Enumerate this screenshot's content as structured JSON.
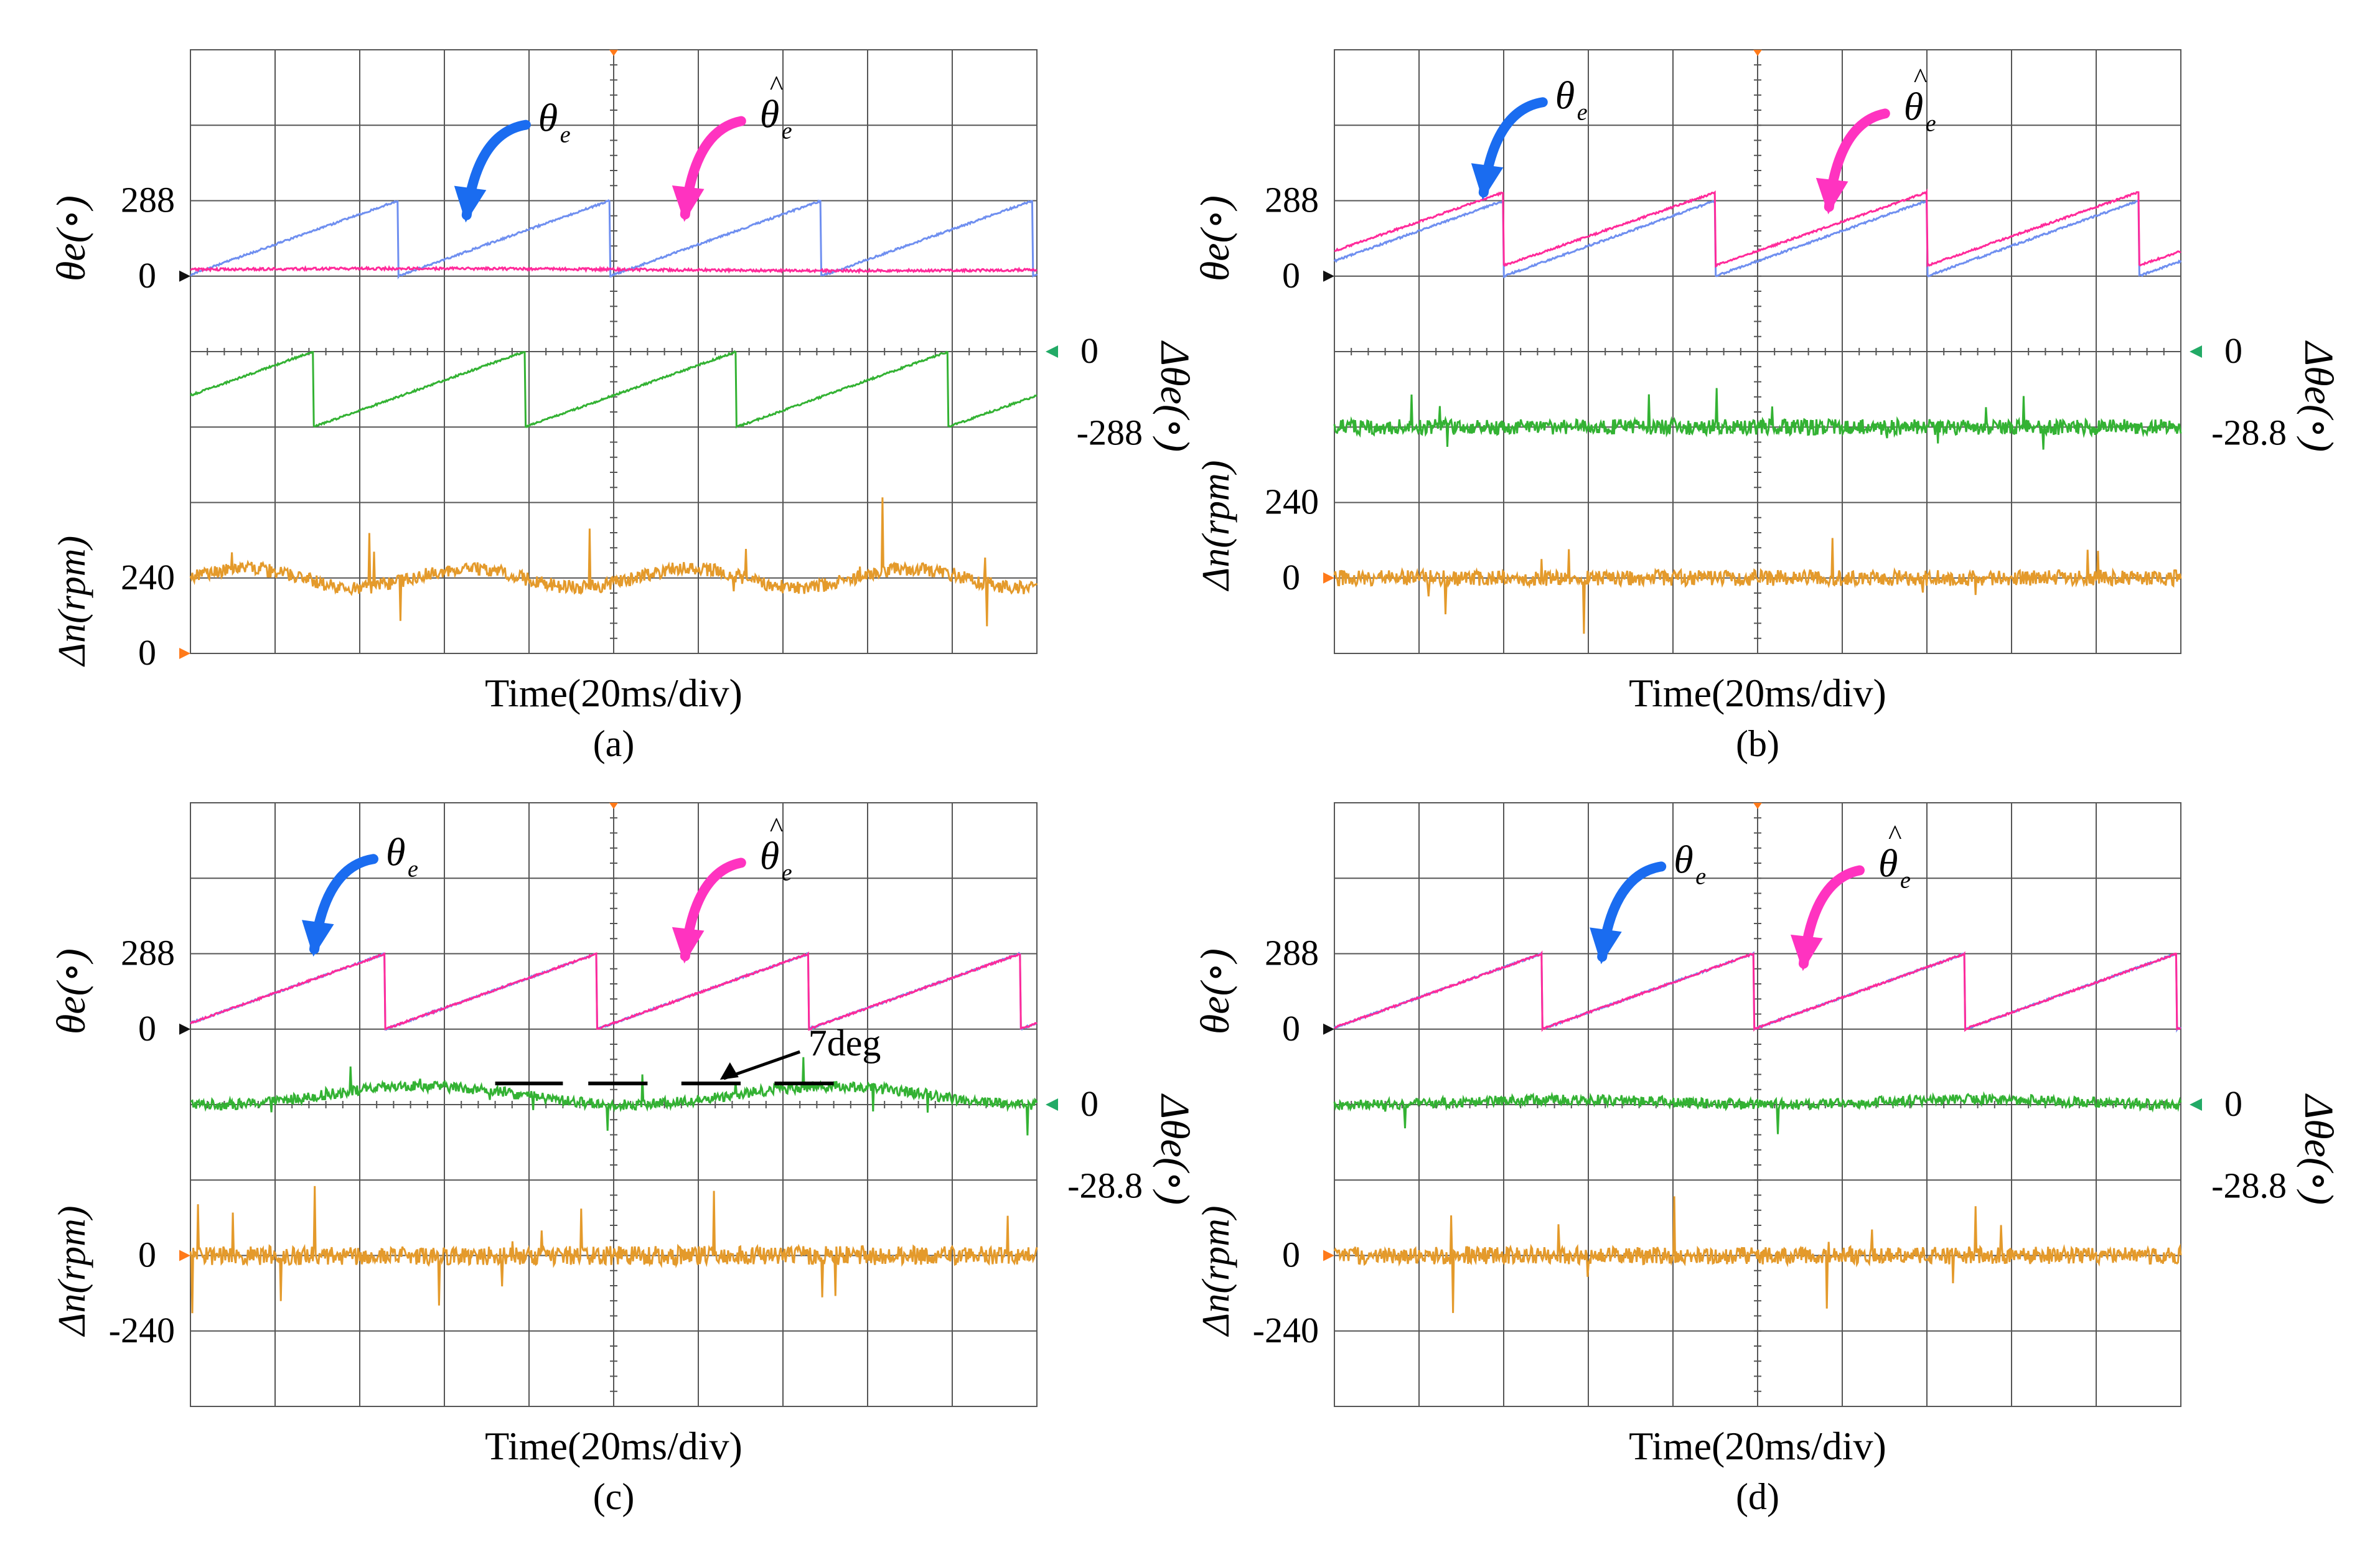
{
  "figure": {
    "colors": {
      "theta": "#6f8ff0",
      "theta_hat": "#ff2a9a",
      "error": "#33b233",
      "speed": "#e49a2b",
      "arrow_theta": "#1a6cf0",
      "arrow_theta_hat": "#ff33c0",
      "marker_green": "#22aa66",
      "marker_orange": "#ff7a1a"
    },
    "x_axis_label": "Time(20ms/div)",
    "symbols": {
      "theta": "θ",
      "theta_sub": "e",
      "hat": "^",
      "delta_theta": "Δθ",
      "delta_n": "Δn",
      "rpm": "rpm",
      "deg": "(∘)"
    }
  },
  "chart_data": [
    {
      "type": "line",
      "panel": "(a)",
      "x_divisions": 10,
      "x_unit": "ms",
      "x_per_div": 20,
      "theta_tick": "288",
      "theta_zero": "0",
      "err_zero": "0",
      "err_tick": "-288",
      "speed_tick": "240",
      "speed_zero": "0",
      "series": [
        {
          "key": "theta",
          "sawtooth_period_div": 2.5,
          "phase_div": 2.45,
          "min": 0,
          "max": 288
        },
        {
          "key": "theta_hat",
          "flat_value": 25
        },
        {
          "key": "error",
          "sawtooth_period_div": 2.5,
          "phase_div": 1.45,
          "min": -288,
          "max": 0
        },
        {
          "key": "speed",
          "mean": 240,
          "ripple": 30,
          "noise": 22
        }
      ]
    },
    {
      "type": "line",
      "panel": "(b)",
      "x_divisions": 10,
      "x_unit": "ms",
      "x_per_div": 20,
      "theta_tick": "288",
      "theta_zero": "0",
      "err_zero": "0",
      "err_tick": "-28.8",
      "speed_tick": "240",
      "speed_zero": "0",
      "series": [
        {
          "key": "theta",
          "sawtooth_period_div": 2.5,
          "phase_div": 2.0,
          "min": 0,
          "max": 288
        },
        {
          "key": "theta_hat",
          "sawtooth_period_div": 2.5,
          "phase_div": 2.0,
          "min": 40,
          "max": 320
        },
        {
          "key": "error",
          "mean": -28.8,
          "noise": 3
        },
        {
          "key": "speed",
          "mean": 0,
          "noise": 25
        }
      ]
    },
    {
      "type": "line",
      "panel": "(c)",
      "x_divisions": 10,
      "x_unit": "ms",
      "x_per_div": 20,
      "theta_tick": "288",
      "theta_zero": "0",
      "err_zero": "0",
      "err_tick": "-28.8",
      "speed_tick": "0",
      "speed_neg_tick": "-240",
      "annotation": "7deg",
      "series": [
        {
          "key": "theta",
          "sawtooth_period_div": 2.5,
          "phase_div": 2.3,
          "min": 0,
          "max": 288
        },
        {
          "key": "theta_hat",
          "sawtooth_period_div": 2.5,
          "phase_div": 2.3,
          "min": 0,
          "max": 288
        },
        {
          "key": "error",
          "mean": 0,
          "ripple": 7,
          "noise": 2
        },
        {
          "key": "speed",
          "mean": 0,
          "noise": 30
        }
      ]
    },
    {
      "type": "line",
      "panel": "(d)",
      "x_divisions": 10,
      "x_unit": "ms",
      "x_per_div": 20,
      "theta_tick": "288",
      "theta_zero": "0",
      "err_zero": "0",
      "err_tick": "-28.8",
      "speed_tick": "0",
      "speed_neg_tick": "-240",
      "series": [
        {
          "key": "theta",
          "sawtooth_period_div": 2.5,
          "phase_div": 2.45,
          "min": 0,
          "max": 288
        },
        {
          "key": "theta_hat",
          "sawtooth_period_div": 2.5,
          "phase_div": 2.45,
          "min": 0,
          "max": 288
        },
        {
          "key": "error",
          "mean": 0,
          "ripple": 2,
          "noise": 2
        },
        {
          "key": "speed",
          "mean": 0,
          "noise": 28
        }
      ]
    }
  ]
}
